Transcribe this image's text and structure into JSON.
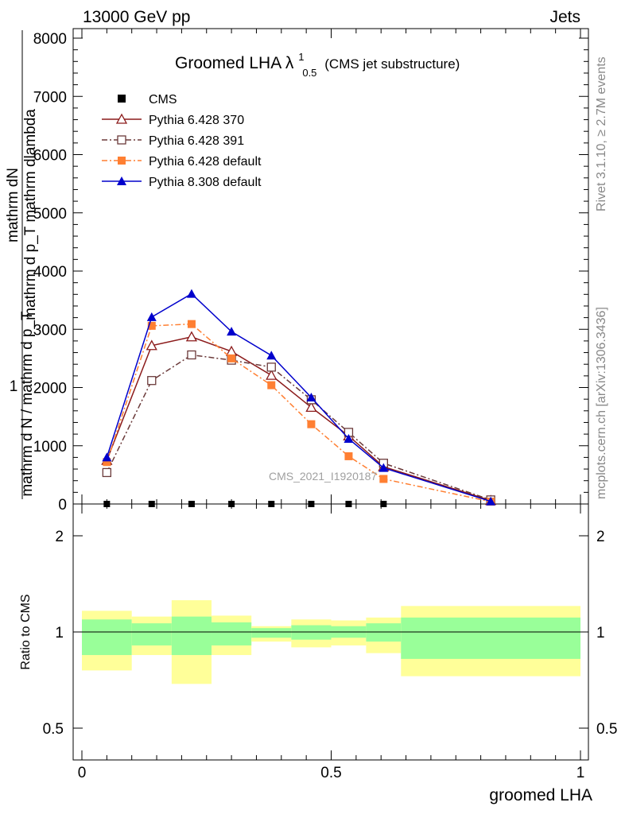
{
  "header": {
    "left": "13000 GeV pp",
    "right": "Jets"
  },
  "side_labels": {
    "rivet": "Rivet 3.1.10, ≥ 2.7M events",
    "mcplots": "mcplots.cern.ch [arXiv:1306.3436]"
  },
  "chart_data": {
    "type": "line",
    "title_main": "Groomed LHA",
    "title_lambda": "λ",
    "title_sup": "1",
    "title_sub": "0.5",
    "title_note": "(CMS jet substructure)",
    "watermark": "CMS_2021_I1920187",
    "ylabel_top": "mathrm dN",
    "ylabel_top2": "mathrm d p_T mathrm dlambda",
    "ylabel_one": "1",
    "ylabel_bottom": "mathrm d N / mathrm d p_T",
    "ratio_ylabel": "Ratio to CMS",
    "xlabel": "groomed LHA",
    "xlim": [
      0,
      1
    ],
    "ylim": [
      0,
      8000
    ],
    "yticks": [
      0,
      1000,
      2000,
      3000,
      4000,
      5000,
      6000,
      7000,
      8000
    ],
    "ytick_labels": [
      "0",
      "1000",
      "2000",
      "3000",
      "4000",
      "5000",
      "6000",
      "7000",
      "8000"
    ],
    "xticks": [
      0,
      0.5,
      1
    ],
    "xtick_labels": [
      "0",
      "0.5",
      "1"
    ],
    "ratio_ylim": [
      0.4,
      2.3
    ],
    "ratio_yticks": [
      0.5,
      1,
      2
    ],
    "ratio_ytick_labels": [
      "0.5",
      "1",
      "2"
    ],
    "x": [
      0.05,
      0.14,
      0.22,
      0.3,
      0.38,
      0.46,
      0.535,
      0.605,
      0.82
    ],
    "series": [
      {
        "name": "CMS",
        "color": "#000000",
        "marker": "square-filled",
        "dash": "",
        "values": [
          15,
          18,
          18,
          20,
          14,
          16,
          12,
          10,
          0
        ]
      },
      {
        "name": "Pythia 6.428 370",
        "color": "#8b1a1a",
        "marker": "triangle-open",
        "dash": "",
        "values": [
          750,
          2720,
          2870,
          2620,
          2210,
          1660,
          1170,
          640,
          60
        ]
      },
      {
        "name": "Pythia 6.428 391",
        "color": "#6b3a3a",
        "marker": "square-open",
        "dash": "7,3,2,3",
        "values": [
          540,
          2120,
          2560,
          2470,
          2350,
          1790,
          1230,
          700,
          70
        ]
      },
      {
        "name": "Pythia 6.428 default",
        "color": "#ff7f32",
        "marker": "square-filled",
        "dash": "7,3,2,3",
        "values": [
          720,
          3060,
          3090,
          2500,
          2040,
          1370,
          820,
          430,
          40
        ]
      },
      {
        "name": "Pythia 8.308 default",
        "color": "#0000cc",
        "marker": "triangle-filled",
        "dash": "",
        "values": [
          800,
          3210,
          3610,
          2960,
          2550,
          1830,
          1120,
          620,
          45
        ]
      }
    ],
    "ratio_bins": [
      {
        "x0": 0.0,
        "x1": 0.1,
        "inner": [
          0.88,
          1.13
        ],
        "outer": [
          0.8,
          1.22
        ]
      },
      {
        "x0": 0.1,
        "x1": 0.18,
        "inner": [
          0.93,
          1.09
        ],
        "outer": [
          0.88,
          1.16
        ]
      },
      {
        "x0": 0.18,
        "x1": 0.26,
        "inner": [
          0.88,
          1.16
        ],
        "outer": [
          0.73,
          1.33
        ]
      },
      {
        "x0": 0.26,
        "x1": 0.34,
        "inner": [
          0.93,
          1.1
        ],
        "outer": [
          0.88,
          1.17
        ]
      },
      {
        "x0": 0.34,
        "x1": 0.42,
        "inner": [
          0.97,
          1.04
        ],
        "outer": [
          0.95,
          1.06
        ]
      },
      {
        "x0": 0.42,
        "x1": 0.5,
        "inner": [
          0.96,
          1.07
        ],
        "outer": [
          0.92,
          1.13
        ]
      },
      {
        "x0": 0.5,
        "x1": 0.57,
        "inner": [
          0.97,
          1.06
        ],
        "outer": [
          0.93,
          1.12
        ]
      },
      {
        "x0": 0.57,
        "x1": 0.64,
        "inner": [
          0.95,
          1.09
        ],
        "outer": [
          0.89,
          1.15
        ]
      },
      {
        "x0": 0.64,
        "x1": 1.0,
        "inner": [
          0.86,
          1.15
        ],
        "outer": [
          0.77,
          1.27
        ]
      }
    ],
    "colors": {
      "inner_band": "#99ff99",
      "outer_band": "#ffff99"
    }
  }
}
